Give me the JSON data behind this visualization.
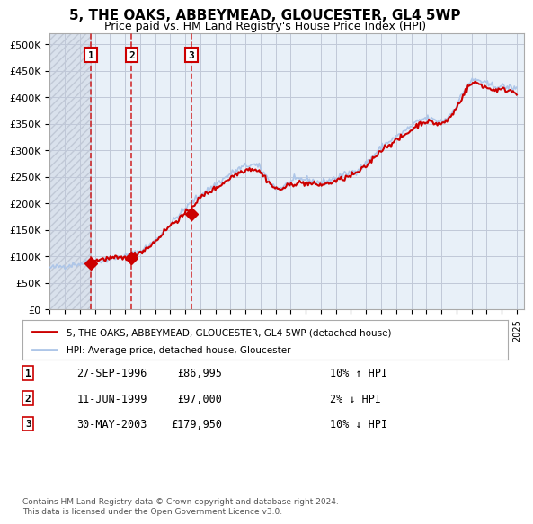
{
  "title": "5, THE OAKS, ABBEYMEAD, GLOUCESTER, GL4 5WP",
  "subtitle": "Price paid vs. HM Land Registry's House Price Index (HPI)",
  "ylabel": "",
  "xlim": [
    1994.0,
    2025.5
  ],
  "ylim": [
    0,
    520000
  ],
  "yticks": [
    0,
    50000,
    100000,
    150000,
    200000,
    250000,
    300000,
    350000,
    400000,
    450000,
    500000
  ],
  "ytick_labels": [
    "£0",
    "£50K",
    "£100K",
    "£150K",
    "£200K",
    "£250K",
    "£300K",
    "£350K",
    "£400K",
    "£450K",
    "£500K"
  ],
  "sale_dates": [
    1996.74,
    1999.44,
    2003.41
  ],
  "sale_prices": [
    86995,
    97000,
    179950
  ],
  "sale_labels": [
    "1",
    "2",
    "3"
  ],
  "sale_table": [
    [
      "1",
      "27-SEP-1996",
      "£86,995",
      "10% ↑ HPI"
    ],
    [
      "2",
      "11-JUN-1999",
      "£97,000",
      "2% ↓ HPI"
    ],
    [
      "3",
      "30-MAY-2003",
      "£179,950",
      "10% ↓ HPI"
    ]
  ],
  "legend_property": "5, THE OAKS, ABBEYMEAD, GLOUCESTER, GL4 5WP (detached house)",
  "legend_hpi": "HPI: Average price, detached house, Gloucester",
  "footer": "Contains HM Land Registry data © Crown copyright and database right 2024.\nThis data is licensed under the Open Government Licence v3.0.",
  "hpi_color": "#aec6e8",
  "property_color": "#cc0000",
  "bg_color": "#e8f0f8",
  "grid_color": "#c0c8d8",
  "hatch_color": "#c8d0dc"
}
